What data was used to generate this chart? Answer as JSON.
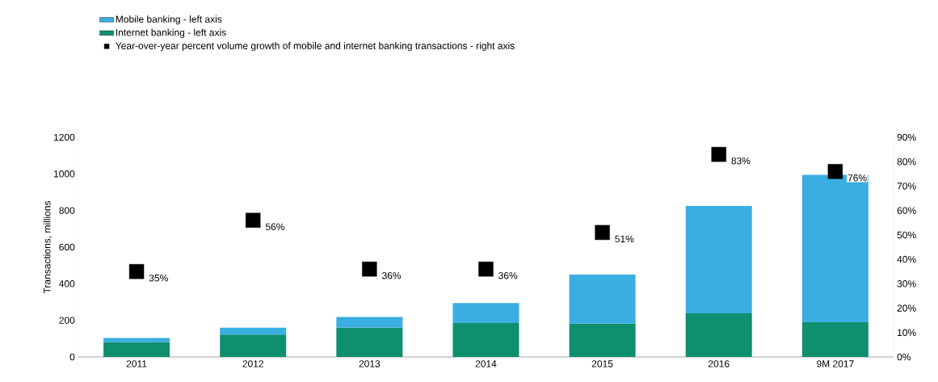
{
  "chart_data": {
    "type": "bar",
    "stacked": true,
    "legend": "top left",
    "marker": "square",
    "ylabel": "Transactions, millions",
    "categories": [
      "2011",
      "2012",
      "2013",
      "2014",
      "2015",
      "2016",
      "9M 2017"
    ],
    "series": [
      {
        "name": "Internet banking - left axis",
        "color": "#0e8f6e",
        "values": [
          80,
          122,
          160,
          185,
          182,
          238,
          190
        ]
      },
      {
        "name": "Mobile banking - left axis",
        "color": "#3aaee0",
        "values": [
          24,
          38,
          58,
          110,
          268,
          587,
          805
        ]
      },
      {
        "name": "Year-over-year percent volume growth of mobile and internet banking transactions - right axis",
        "type": "scatter",
        "axis": "y2",
        "color": "#000000",
        "values": [
          35,
          56,
          36,
          36,
          51,
          83,
          76
        ],
        "value_labels": [
          "35%",
          "56%",
          "36%",
          "36%",
          "51%",
          "83%",
          "76%"
        ]
      }
    ],
    "ylim": [
      0,
      1200
    ],
    "yticks": [
      0,
      200,
      400,
      600,
      800,
      1000,
      1200
    ],
    "y2lim": [
      0,
      90
    ],
    "y2ticks": [
      {
        "value": 0,
        "label": "0%"
      },
      {
        "value": 10,
        "label": "10%"
      },
      {
        "value": 20,
        "label": "20%"
      },
      {
        "value": 30,
        "label": "30%"
      },
      {
        "value": 40,
        "label": "40%"
      },
      {
        "value": 50,
        "label": "50%"
      },
      {
        "value": 60,
        "label": "60%"
      },
      {
        "value": 70,
        "label": "70%"
      },
      {
        "value": 80,
        "label": "80%"
      },
      {
        "value": 90,
        "label": "90%"
      }
    ]
  }
}
